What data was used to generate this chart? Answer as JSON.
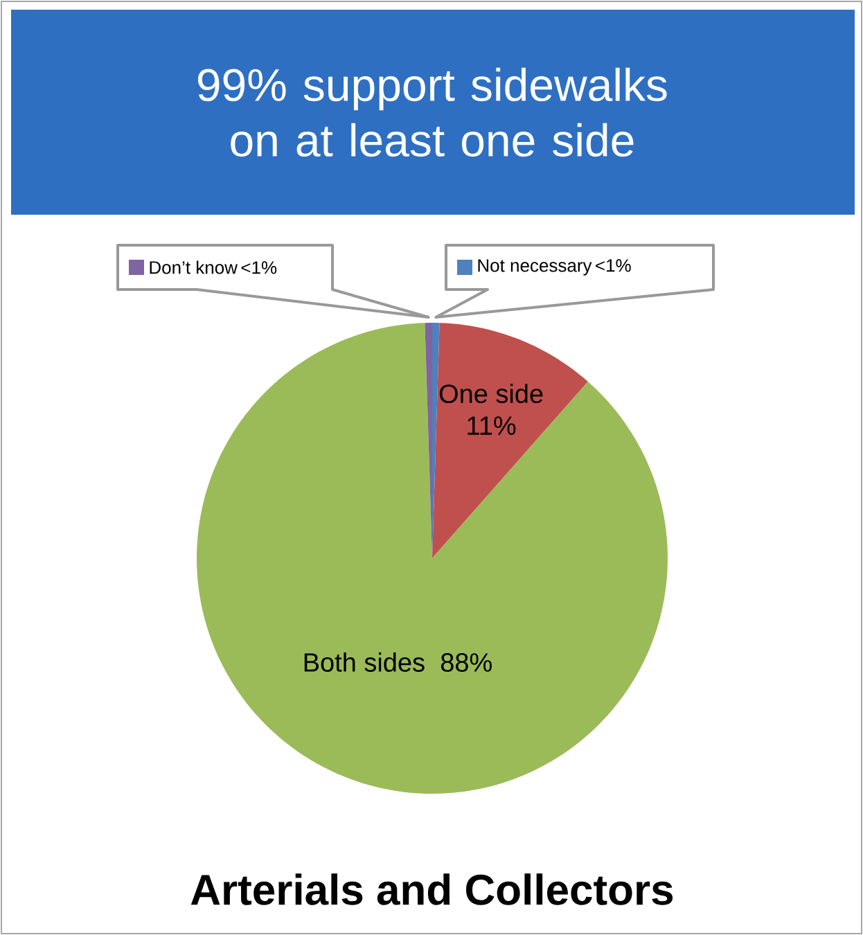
{
  "chart_data": {
    "type": "pie",
    "title": "99% support sidewalks on at least one side",
    "subtitle": "Arterials and Collectors",
    "categories": [
      "Not necessary",
      "One side",
      "Both sides",
      "Don’t know"
    ],
    "values": [
      0.5,
      11,
      88,
      0.5
    ],
    "value_labels": [
      "<1%",
      "11%",
      "88%",
      "<1%"
    ],
    "colors": [
      "#4f81bd",
      "#c0504d",
      "#9bbb59",
      "#8064a2"
    ],
    "legend": "top"
  }
}
